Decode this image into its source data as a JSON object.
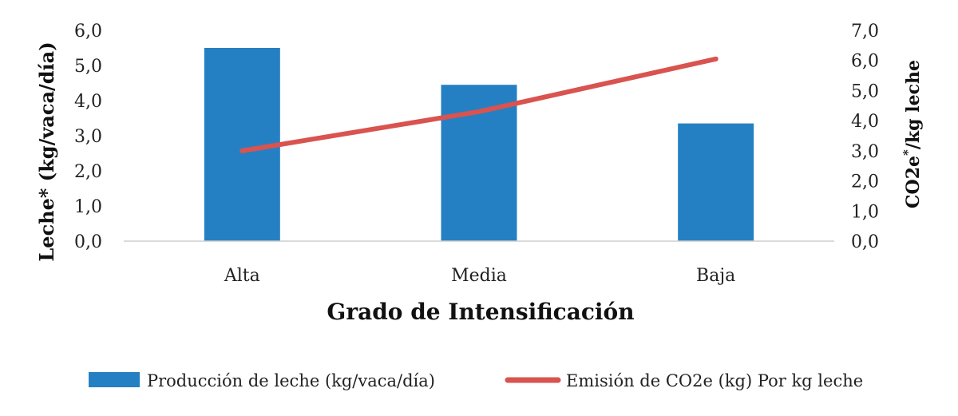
{
  "chart_data": {
    "type": "bar",
    "categories": [
      "Alta",
      "Media",
      "Baja"
    ],
    "series": [
      {
        "name": "Producción de leche (kg/vaca/día)",
        "type": "bar",
        "axis": "left",
        "color": "#2580C3",
        "values": [
          5.5,
          4.45,
          3.35
        ]
      },
      {
        "name": "Emisión de CO2e (kg) Por kg leche",
        "type": "line",
        "axis": "right",
        "color": "#D9534F",
        "values": [
          3.0,
          4.3,
          6.05
        ]
      }
    ],
    "xlabel": "Grado de Intensificación",
    "ylabel": "Leche* (kg/vaca/día)",
    "y2label": "CO2e*/kg leche",
    "ylim": [
      0,
      6
    ],
    "y2lim": [
      0,
      7
    ],
    "yticks": [
      "0,0",
      "1,0",
      "2,0",
      "3,0",
      "4,0",
      "5,0",
      "6,0"
    ],
    "y2ticks": [
      "0,0",
      "1,0",
      "2,0",
      "3,0",
      "4,0",
      "5,0",
      "6,0",
      "7,0"
    ],
    "legend_position": "bottom",
    "grid": false
  }
}
